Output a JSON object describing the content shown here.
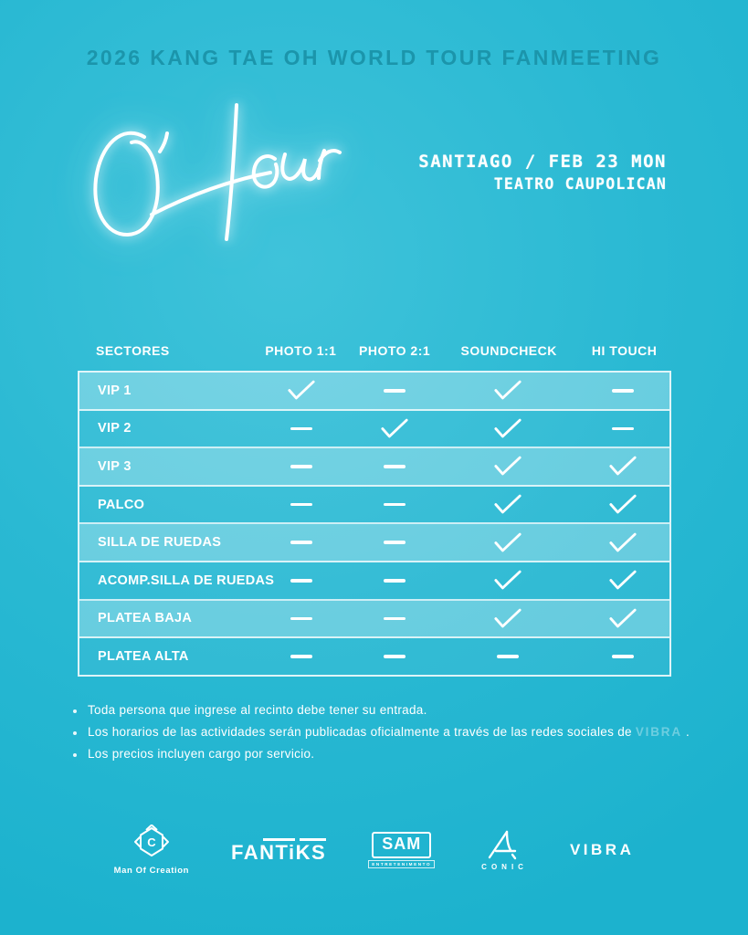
{
  "poster": {
    "title": "2026 KANG TAE OH WORLD TOUR FANMEETING",
    "logo_text": "O'Hour",
    "venue": {
      "line1": "SANTIAGO / FEB 23 MON",
      "line2": "TEATRO CAUPOLICAN"
    }
  },
  "table": {
    "headers": [
      "SECTORES",
      "PHOTO 1:1",
      "PHOTO 2:1",
      "SOUNDCHECK",
      "HI TOUCH"
    ],
    "rows": [
      {
        "sector": "VIP 1",
        "cells": [
          "check-icon",
          "dash-icon",
          "check-icon",
          "dash-icon"
        ]
      },
      {
        "sector": "VIP 2",
        "cells": [
          "dash-icon",
          "check-icon",
          "check-icon",
          "dash-icon"
        ]
      },
      {
        "sector": "VIP 3",
        "cells": [
          "dash-icon",
          "dash-icon",
          "check-icon",
          "check-icon"
        ]
      },
      {
        "sector": "PALCO",
        "cells": [
          "dash-icon",
          "dash-icon",
          "check-icon",
          "check-icon"
        ]
      },
      {
        "sector": "SILLA DE RUEDAS",
        "cells": [
          "dash-icon",
          "dash-icon",
          "check-icon",
          "check-icon"
        ]
      },
      {
        "sector": "ACOMP.SILLA DE RUEDAS",
        "cells": [
          "dash-icon",
          "dash-icon",
          "check-icon",
          "check-icon"
        ]
      },
      {
        "sector": "PLATEA BAJA",
        "cells": [
          "dash-icon",
          "dash-icon",
          "check-icon",
          "check-icon"
        ]
      },
      {
        "sector": "PLATEA ALTA",
        "cells": [
          "dash-icon",
          "dash-icon",
          "dash-icon",
          "dash-icon"
        ]
      }
    ]
  },
  "notes": [
    {
      "text": "Toda persona que ingrese al recinto debe tener su entrada."
    },
    {
      "prefix": "Los horarios de las actividades serán publicadas oficialmente a través de las redes sociales de ",
      "brand": "VIBRA",
      "suffix": " ."
    },
    {
      "text": "Los precios incluyen cargo por servicio."
    }
  ],
  "sponsors": {
    "man_of_creation": "Man Of Creation",
    "man_of_creation_initial": "C",
    "fantiks": "FANTiKS",
    "sam": "SAM",
    "sam_sub": "ENTRETENIMENTO",
    "conic": "CONIC",
    "vibra": "VIBRA"
  },
  "colors": {
    "background": "#2AB9D3",
    "title_teal": "#1B95AB",
    "row_light": "#6FC9DE",
    "row_dark": "#2FBDD7",
    "text_white": "#FFFFFF"
  }
}
